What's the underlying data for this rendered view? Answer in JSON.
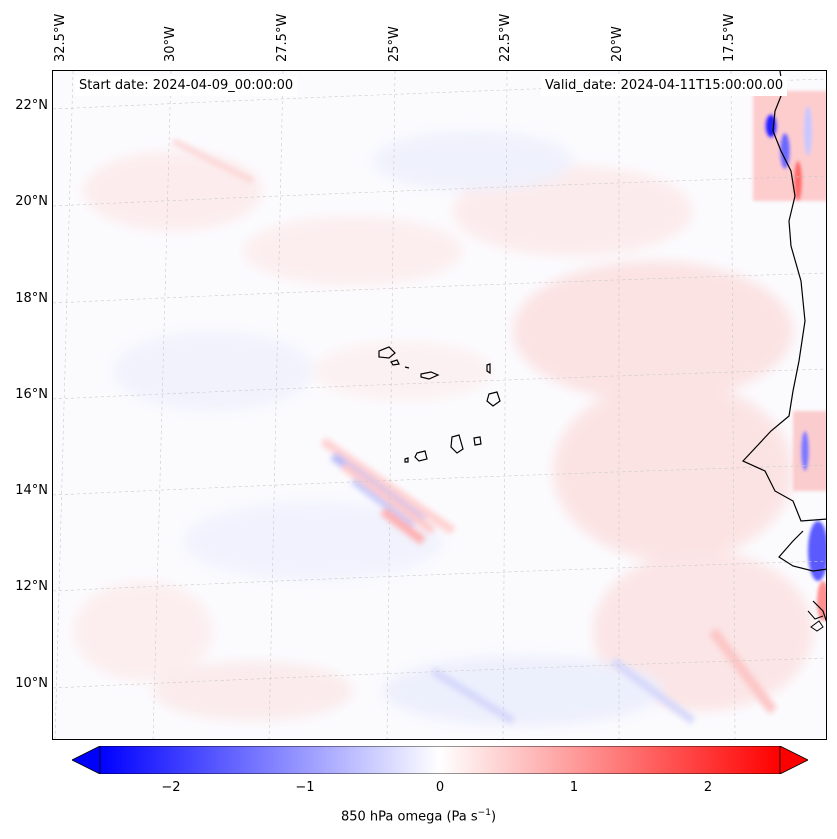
{
  "map": {
    "start_date": "Start date: 2024-04-09_00:00:00",
    "valid_date": "Valid_date: 2024-04-11T15:00:00.00",
    "lon_labels": [
      "32.5°W",
      "30°W",
      "27.5°W",
      "25°W",
      "22.5°W",
      "20°W",
      "17.5°W"
    ],
    "lat_labels": [
      "22°N",
      "20°N",
      "18°N",
      "16°N",
      "14°N",
      "12°N",
      "10°N"
    ]
  },
  "colorbar": {
    "ticks": [
      "−2",
      "−1",
      "0",
      "1",
      "2"
    ],
    "label_main": "850 hPa omega (Pa s",
    "label_exp": "−1",
    "label_close": ")",
    "min_color": "#0000ff",
    "mid_color": "#ffffff",
    "max_color": "#ff0000"
  }
}
